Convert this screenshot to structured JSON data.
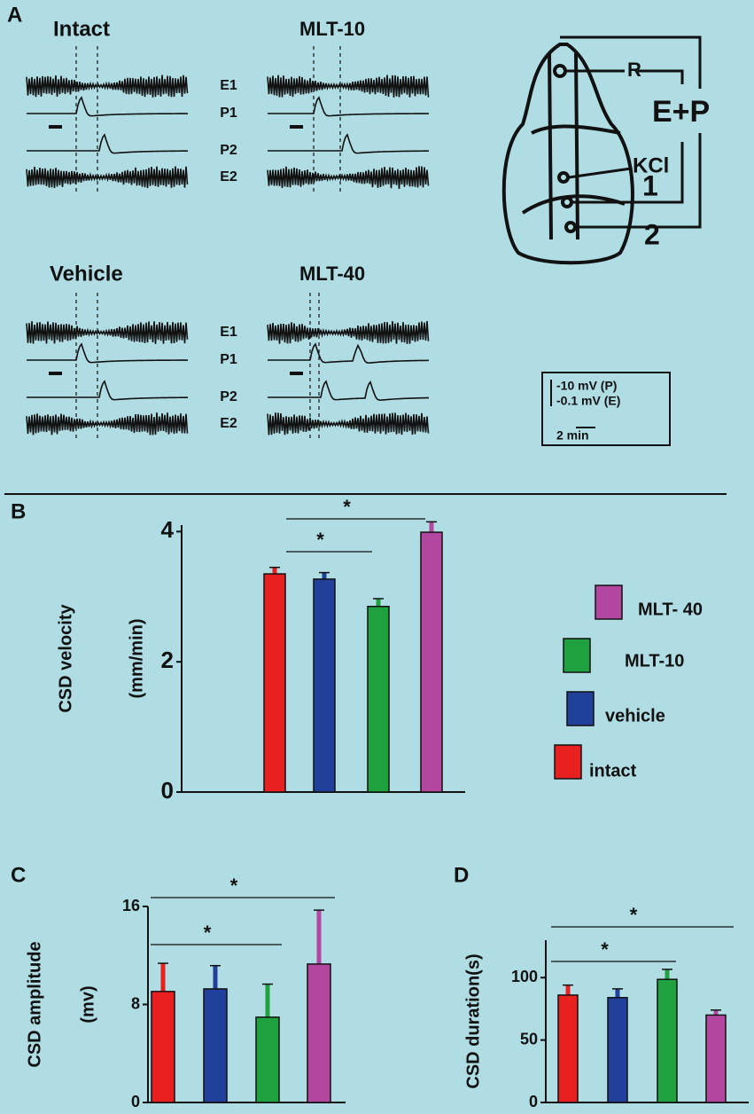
{
  "panel_a": {
    "label": "A",
    "conditions": [
      "Intact",
      "MLT-10",
      "Vehicle",
      "MLT-40"
    ],
    "trace_labels": [
      "E1",
      "P1",
      "P2",
      "E2"
    ],
    "electrodes": {
      "reference": "R",
      "recording": "E+P",
      "stimulus": "KCl",
      "first": "1",
      "second": "2"
    },
    "scale": [
      "-10 mV (P)",
      "-0.1 mV (E)",
      "2 min"
    ]
  },
  "chart_data": [
    {
      "type": "bar",
      "label": "B",
      "ylabel": [
        "CSD velocity",
        "(mm/min)"
      ],
      "values": [
        3.35,
        3.27,
        2.85,
        3.99
      ],
      "errors": [
        0.1,
        0.1,
        0.12,
        0.16
      ],
      "colors": [
        "#e8201f",
        "#20409a",
        "#1fa140",
        "#b347a0"
      ],
      "legend": [
        "intact",
        "vehicle",
        "MLT-10",
        "MLT- 40"
      ],
      "annotations": [
        "*",
        "*"
      ],
      "ylim": [
        0,
        4.1
      ],
      "yticks": [
        0,
        2,
        4
      ]
    },
    {
      "type": "bar",
      "label": "C",
      "ylabel": [
        "CSD amplitude",
        "(mv)"
      ],
      "values": [
        9.06,
        9.27,
        6.96,
        11.3
      ],
      "errors": [
        2.3,
        1.9,
        2.7,
        4.4
      ],
      "colors": [
        "#e8201f",
        "#20409a",
        "#1fa140",
        "#b347a0"
      ],
      "annotations": [
        "*",
        "*"
      ],
      "ylim": [
        0,
        16
      ],
      "yticks": [
        0,
        8,
        16
      ]
    },
    {
      "type": "bar",
      "label": "D",
      "ylabel": [
        "CSD duration(s)"
      ],
      "values": [
        86,
        84,
        98.6,
        70
      ],
      "errors": [
        8,
        7,
        8,
        4
      ],
      "colors": [
        "#e8201f",
        "#20409a",
        "#1fa140",
        "#b347a0"
      ],
      "annotations": [
        "*",
        "*"
      ],
      "ylim": [
        0,
        130
      ],
      "yticks": [
        0,
        50,
        100
      ]
    }
  ]
}
